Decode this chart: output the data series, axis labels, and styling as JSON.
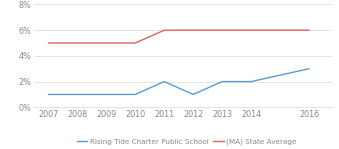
{
  "years": [
    2007,
    2008,
    2009,
    2010,
    2011,
    2012,
    2013,
    2014,
    2016
  ],
  "rising_tide": [
    1.0,
    1.0,
    1.0,
    1.0,
    2.0,
    1.0,
    2.0,
    2.0,
    3.0
  ],
  "ma_state": [
    5.0,
    5.0,
    5.0,
    5.0,
    6.0,
    6.0,
    6.0,
    6.0,
    6.0
  ],
  "rising_tide_color": "#5b9bd5",
  "ma_state_color": "#e06060",
  "rising_tide_label": "Rising Tide Charter Public School",
  "ma_state_label": "(MA) State Average",
  "ylim": [
    0,
    8
  ],
  "yticks": [
    0,
    2,
    4,
    6,
    8
  ],
  "ytick_labels": [
    "0%",
    "2%",
    "4%",
    "6%",
    "8%"
  ],
  "background_color": "#ffffff",
  "grid_color": "#d8d8d8",
  "tick_label_color": "#888888",
  "legend_fontsize": 5.2,
  "axis_fontsize": 5.8,
  "linewidth": 1.0
}
